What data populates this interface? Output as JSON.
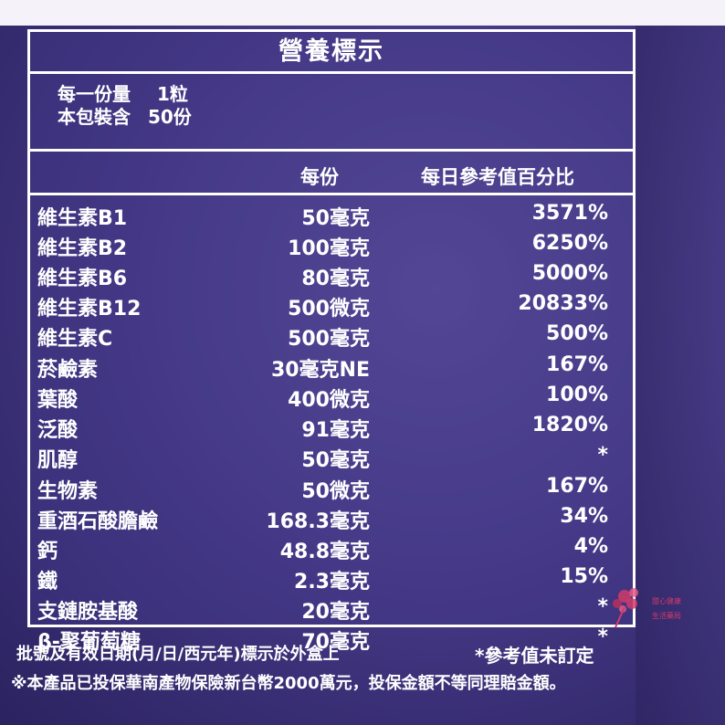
{
  "panel": {
    "title": "營養標示",
    "serving_size_label": "每一份量",
    "serving_size_value": "1粒",
    "servings_label": "本包裝含",
    "servings_value": "50份",
    "col_per_serving": "每份",
    "col_daily_value": "每日參考值百分比"
  },
  "nutrients": [
    {
      "name": "維生素B1",
      "amount": "50毫克",
      "pct": "3571%"
    },
    {
      "name": "維生素B2",
      "amount": "100毫克",
      "pct": "6250%"
    },
    {
      "name": "維生素B6",
      "amount": "80毫克",
      "pct": "5000%"
    },
    {
      "name": "維生素B12",
      "amount": "500微克",
      "pct": "20833%"
    },
    {
      "name": "維生素C",
      "amount": "500毫克",
      "pct": "500%"
    },
    {
      "name": "菸鹼素",
      "amount": "30毫克NE",
      "pct": "167%"
    },
    {
      "name": "葉酸",
      "amount": "400微克",
      "pct": "100%"
    },
    {
      "name": "泛酸",
      "amount": "91毫克",
      "pct": "1820%"
    },
    {
      "name": "肌醇",
      "amount": "50毫克",
      "pct": "*"
    },
    {
      "name": "生物素",
      "amount": "50微克",
      "pct": "167%"
    },
    {
      "name": "重酒石酸膽鹼",
      "amount": "168.3毫克",
      "pct": "34%"
    },
    {
      "name": "鈣",
      "amount": "48.8毫克",
      "pct": "4%"
    },
    {
      "name": "鐵",
      "amount": "2.3毫克",
      "pct": "15%"
    },
    {
      "name": "支鏈胺基酸",
      "amount": "20毫克",
      "pct": "*"
    },
    {
      "name": "β-聚葡萄糖",
      "amount": "70毫克",
      "pct": "*"
    }
  ],
  "footer": {
    "line1_left": "批號及有效日期(月/日/西元年)標示於外盒上",
    "line1_right": "*參考值未訂定",
    "line2": "※本產品已投保華南產物保險新台幣2000萬元，投保金額不等同理賠金額。"
  },
  "stamp": {
    "text_top": "甜心健康",
    "text_bottom": "生活藥局",
    "color": "#d13b6b"
  },
  "colors": {
    "background": "#463a86",
    "text": "#ffffff"
  }
}
